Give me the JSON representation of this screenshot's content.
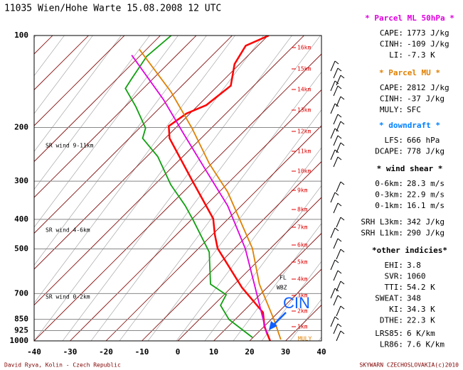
{
  "chart_data": {
    "type": "skewt",
    "title": "11035  Wien/Hohe Warte   15.08.2008  12 UTC",
    "xlim": [
      -40,
      40
    ],
    "xticks": [
      -40,
      -30,
      -20,
      -10,
      0,
      10,
      20,
      30,
      40
    ],
    "ylim": [
      1000,
      100
    ],
    "yticks": [
      100,
      200,
      300,
      400,
      500,
      700,
      850,
      925,
      1000
    ],
    "log_y": true,
    "series": [
      {
        "name": "Temperature",
        "color": "#ff0000",
        "pressure": [
          1000,
          899,
          807,
          669,
          498,
          448,
          398,
          299,
          217,
          198,
          180,
          169,
          146,
          124,
          108,
          100
        ],
        "values": [
          25.7,
          20.2,
          15.8,
          3,
          -14.7,
          -19.4,
          -24.2,
          -40.6,
          -58.8,
          -62.4,
          -61,
          -57.8,
          -56.4,
          -61.4,
          -63.4,
          -59.8
        ]
      },
      {
        "name": "Dew point",
        "color": "#10a010",
        "pressure": [
          974,
          851,
          765,
          706,
          652,
          512,
          403,
          361,
          308,
          249,
          217,
          201,
          171,
          149,
          138,
          117,
          100
        ],
        "values": [
          19.8,
          8.3,
          2,
          0.6,
          -6.7,
          -16,
          -29.3,
          -35.6,
          -45.5,
          -57,
          -66.3,
          -68.3,
          -77,
          -85,
          -86,
          -88,
          -87
        ]
      },
      {
        "name": "Parcel MU",
        "color": "#e08000",
        "pressure": [
          990,
          851,
          652,
          498,
          325,
          263,
          201,
          153,
          111
        ],
        "values": [
          28.3,
          20.8,
          6.9,
          -5,
          -27.7,
          -40.6,
          -55.4,
          -71.3,
          -92
        ]
      },
      {
        "name": "Parcel ML 50hPa",
        "color": "#e000e0",
        "pressure": [
          948,
          652,
          498,
          361,
          277,
          211,
          162,
          116
        ],
        "values": [
          22.8,
          5.5,
          -7,
          -23.8,
          -39.6,
          -55.8,
          -71.3,
          -92.5
        ]
      }
    ],
    "heights": [
      "16km",
      "15km",
      "14km",
      "13km",
      "12km",
      "11km",
      "10km",
      "9km",
      "8km",
      "7km",
      "6km",
      "5km",
      "4km",
      "3km",
      "2km",
      "1km"
    ],
    "annotations": [
      "SR wind 9-11km",
      "SR wind 4-6km",
      "SR wind 0-2km",
      "FL",
      "WBZ",
      "MULY",
      "CIN"
    ]
  },
  "panel": [
    {
      "title": "* Parcel ML 50hPa *",
      "rows": [
        [
          "CAPE:",
          "1773 J/kg"
        ],
        [
          "CINH:",
          "-109 J/kg"
        ],
        [
          "LI:",
          "-7.3 K"
        ]
      ]
    },
    {
      "title": "* Parcel MU *",
      "rows": [
        [
          "CAPE:",
          "2812 J/kg"
        ],
        [
          "CINH:",
          "-37 J/kg"
        ],
        [
          "MULY:",
          "SFC"
        ]
      ]
    },
    {
      "title": "* downdraft *",
      "rows": [
        [
          "LFS:",
          "666 hPa"
        ],
        [
          "DCAPE:",
          "778 J/kg"
        ]
      ]
    },
    {
      "title": "* wind shear *",
      "rows": [
        [
          "0-6km:",
          "28.3 m/s"
        ],
        [
          "0-3km:",
          "22.9 m/s"
        ],
        [
          "0-1km:",
          "16.1 m/s"
        ]
      ]
    },
    {
      "rows": [
        [
          "SRH L3km:",
          "342 J/kg"
        ],
        [
          "SRH L1km:",
          "290 J/kg"
        ]
      ]
    },
    {
      "title": "*other indicies*",
      "rows": [
        [
          "EHI:",
          "3.8"
        ],
        [
          "SVR:",
          "1060"
        ],
        [
          "TTI:",
          "54.2 K"
        ],
        [
          "SWEAT:",
          "348"
        ],
        [
          "KI:",
          "34.3 K"
        ],
        [
          "DTHE:",
          "22.3 K"
        ],
        [
          "LRS85:",
          "6 K/km"
        ],
        [
          "LR86:",
          "7.6 K/km"
        ]
      ]
    }
  ],
  "footer": {
    "left": "David Ryva, Kolin - Czech Republic",
    "right": "SKYWARN CZECHOSLOVAKIA(c)2010"
  }
}
